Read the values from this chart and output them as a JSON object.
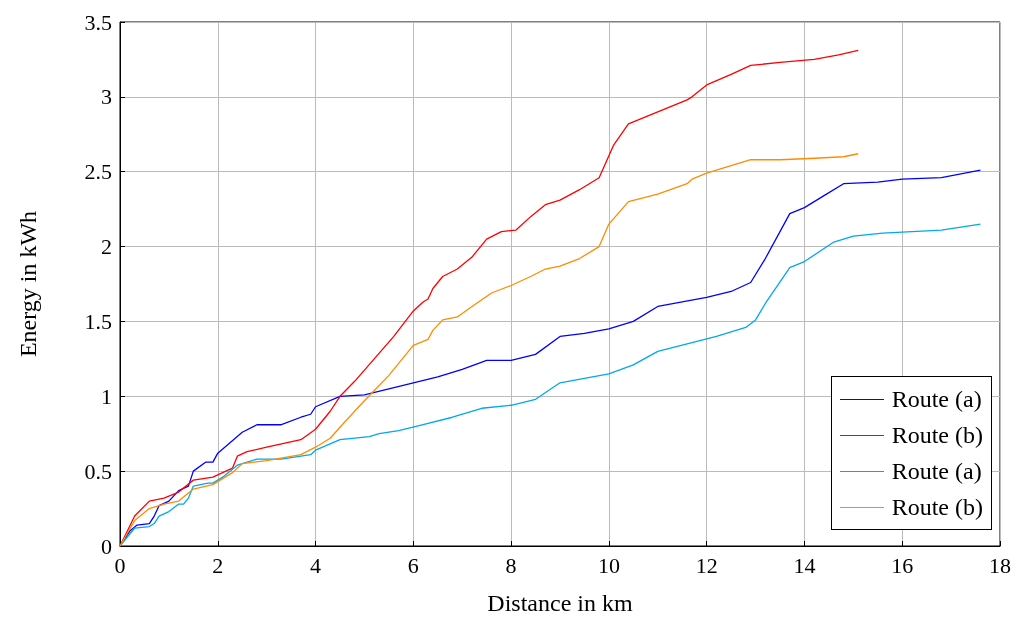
{
  "chart_data": {
    "type": "line",
    "xlabel": "Distance in km",
    "ylabel": "Energy in kWh",
    "xlim": [
      0,
      18
    ],
    "xticks": [
      0,
      2,
      4,
      6,
      8,
      10,
      12,
      14,
      16,
      18
    ],
    "ylim": [
      0,
      3.5
    ],
    "yticks": [
      0,
      0.5,
      1,
      1.5,
      2,
      2.5,
      3,
      3.5
    ],
    "grid": true,
    "legend": "bottom right",
    "marker": "none",
    "line_style": "solid",
    "series": [
      {
        "name": "Route (a)",
        "color": "#0000ff",
        "x": [
          0,
          0.2,
          0.35,
          0.6,
          0.7,
          0.8,
          1.0,
          1.2,
          1.4,
          1.5,
          1.75,
          1.9,
          2.0,
          2.5,
          2.8,
          3.3,
          3.7,
          3.9,
          4.0,
          4.5,
          5.0,
          5.5,
          6.0,
          6.5,
          7.0,
          7.5,
          8.0,
          8.5,
          9.0,
          9.5,
          10.0,
          10.5,
          11.0,
          11.5,
          12.0,
          12.5,
          12.9,
          13.2,
          13.7,
          14.0,
          14.4,
          14.8,
          15.5,
          16.0,
          16.8,
          17.6
        ],
        "values": [
          0,
          0.1,
          0.14,
          0.15,
          0.2,
          0.27,
          0.3,
          0.37,
          0.4,
          0.5,
          0.56,
          0.56,
          0.62,
          0.76,
          0.81,
          0.81,
          0.86,
          0.88,
          0.93,
          1.0,
          1.01,
          1.05,
          1.09,
          1.13,
          1.18,
          1.24,
          1.24,
          1.28,
          1.4,
          1.42,
          1.45,
          1.5,
          1.6,
          1.63,
          1.66,
          1.7,
          1.76,
          1.92,
          2.22,
          2.26,
          2.34,
          2.42,
          2.43,
          2.45,
          2.46,
          2.51
        ]
      },
      {
        "name": "Route (b)",
        "color": "#ff0000",
        "x": [
          0,
          0.3,
          0.6,
          0.9,
          1.2,
          1.5,
          1.9,
          2.3,
          2.4,
          2.6,
          3.0,
          3.7,
          4.0,
          4.3,
          4.5,
          4.8,
          5.2,
          5.6,
          6.0,
          6.2,
          6.3,
          6.4,
          6.6,
          6.9,
          7.2,
          7.5,
          7.8,
          8.1,
          8.4,
          8.7,
          9.0,
          9.4,
          9.8,
          10.1,
          10.4,
          11.0,
          11.6,
          11.7,
          12.0,
          12.5,
          12.9,
          13.5,
          14.2,
          14.7,
          15.1
        ],
        "values": [
          0,
          0.2,
          0.3,
          0.32,
          0.36,
          0.44,
          0.46,
          0.52,
          0.6,
          0.63,
          0.66,
          0.71,
          0.78,
          0.9,
          1.0,
          1.1,
          1.25,
          1.4,
          1.57,
          1.63,
          1.65,
          1.72,
          1.8,
          1.85,
          1.93,
          2.05,
          2.1,
          2.11,
          2.2,
          2.28,
          2.31,
          2.38,
          2.46,
          2.68,
          2.82,
          2.9,
          2.98,
          3.0,
          3.08,
          3.15,
          3.21,
          3.23,
          3.25,
          3.28,
          3.31
        ]
      },
      {
        "name": "Route (a)",
        "color": "#00a8ec",
        "x": [
          0,
          0.3,
          0.6,
          0.7,
          0.8,
          1.0,
          1.2,
          1.3,
          1.4,
          1.5,
          1.8,
          1.9,
          2.1,
          2.4,
          2.8,
          3.3,
          3.9,
          4.0,
          4.5,
          5.1,
          5.3,
          5.7,
          6.2,
          6.8,
          7.4,
          8.0,
          8.5,
          9.0,
          9.5,
          10.0,
          10.5,
          11.0,
          11.6,
          12.2,
          12.8,
          13.0,
          13.2,
          13.7,
          14.0,
          14.6,
          15.0,
          15.6,
          16.2,
          16.8,
          17.6
        ],
        "values": [
          0,
          0.12,
          0.13,
          0.15,
          0.2,
          0.23,
          0.28,
          0.28,
          0.32,
          0.4,
          0.42,
          0.42,
          0.46,
          0.54,
          0.58,
          0.58,
          0.61,
          0.64,
          0.71,
          0.73,
          0.75,
          0.77,
          0.81,
          0.86,
          0.92,
          0.94,
          0.98,
          1.09,
          1.12,
          1.15,
          1.21,
          1.3,
          1.35,
          1.4,
          1.46,
          1.51,
          1.62,
          1.86,
          1.9,
          2.03,
          2.07,
          2.09,
          2.1,
          2.11,
          2.15
        ]
      },
      {
        "name": "Route (b)",
        "color": "#ff8c00",
        "x": [
          0,
          0.3,
          0.6,
          0.9,
          1.2,
          1.5,
          1.9,
          2.3,
          2.5,
          3.0,
          3.7,
          4.0,
          4.3,
          4.6,
          5.0,
          5.5,
          6.0,
          6.3,
          6.4,
          6.6,
          6.9,
          7.2,
          7.6,
          8.0,
          8.4,
          8.7,
          9.0,
          9.4,
          9.8,
          10.0,
          10.4,
          11.0,
          11.6,
          11.7,
          12.0,
          12.5,
          12.9,
          13.5,
          14.2,
          14.8,
          15.1
        ],
        "values": [
          0,
          0.17,
          0.25,
          0.28,
          0.3,
          0.38,
          0.41,
          0.49,
          0.55,
          0.57,
          0.61,
          0.66,
          0.72,
          0.83,
          0.97,
          1.14,
          1.34,
          1.38,
          1.44,
          1.51,
          1.53,
          1.6,
          1.69,
          1.74,
          1.8,
          1.85,
          1.87,
          1.92,
          2.0,
          2.15,
          2.3,
          2.35,
          2.42,
          2.45,
          2.49,
          2.54,
          2.58,
          2.58,
          2.59,
          2.6,
          2.62
        ]
      }
    ]
  }
}
